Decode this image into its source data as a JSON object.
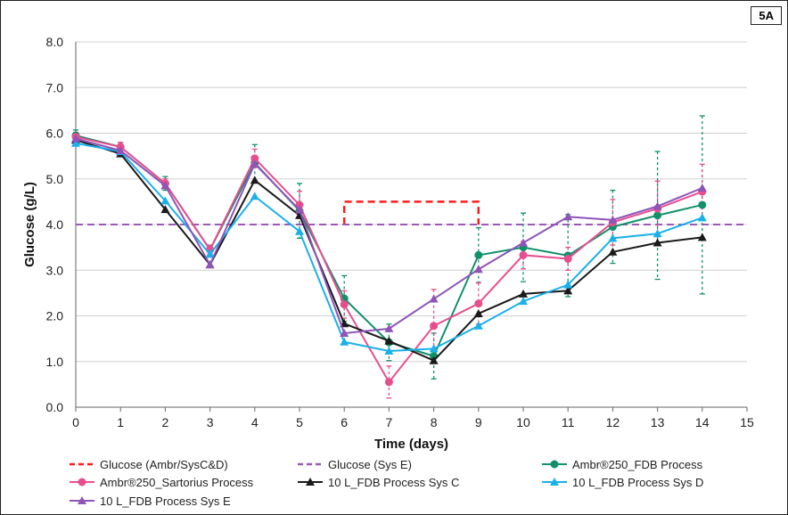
{
  "panel_label": "5A",
  "chart_data": {
    "type": "line",
    "xlabel": "Time (days)",
    "ylabel": "Glucose (g/L)",
    "xlim": [
      0,
      15
    ],
    "ylim": [
      0,
      8
    ],
    "x_ticks": [
      0,
      1,
      2,
      3,
      4,
      5,
      6,
      7,
      8,
      9,
      10,
      11,
      12,
      13,
      14,
      15
    ],
    "y_ticks": [
      "0.0",
      "1.0",
      "2.0",
      "3.0",
      "4.0",
      "5.0",
      "6.0",
      "7.0",
      "8.0"
    ],
    "grid": "horizontal",
    "legend_position": "bottom",
    "reference_lines": [
      {
        "name": "Glucose (Ambr/SysC&D)",
        "color": "#ff1a1a",
        "style": "dashed",
        "points": [
          [
            6,
            4.0
          ],
          [
            6,
            4.5
          ],
          [
            9,
            4.5
          ],
          [
            9,
            4.0
          ]
        ]
      },
      {
        "name": "Glucose (Sys E)",
        "color": "#9b59b6",
        "style": "dashed",
        "points": [
          [
            0,
            4.0
          ],
          [
            15,
            4.0
          ]
        ]
      }
    ],
    "series": [
      {
        "name": "Ambr®250_FDB Process",
        "color": "#12906a",
        "marker": "circle",
        "x": [
          0,
          1,
          2,
          3,
          4,
          5,
          6,
          7,
          8,
          9,
          10,
          11,
          12,
          13,
          14
        ],
        "y": [
          5.95,
          5.7,
          4.9,
          3.45,
          5.35,
          4.3,
          2.38,
          1.42,
          1.12,
          3.33,
          3.5,
          3.32,
          3.95,
          4.2,
          4.43
        ],
        "err": [
          0.12,
          0.1,
          0.15,
          0.1,
          0.4,
          0.6,
          0.5,
          0.4,
          0.5,
          0.6,
          0.75,
          0.9,
          0.8,
          1.4,
          1.95
        ]
      },
      {
        "name": "Ambr®250_Sartorius Process",
        "color": "#e64f8e",
        "marker": "circle",
        "x": [
          0,
          1,
          2,
          3,
          4,
          5,
          6,
          7,
          8,
          9,
          10,
          11,
          12,
          13,
          14
        ],
        "y": [
          5.92,
          5.7,
          4.9,
          3.45,
          5.45,
          4.43,
          2.25,
          0.55,
          1.78,
          2.27,
          3.33,
          3.25,
          4.05,
          4.35,
          4.72
        ],
        "err": [
          0.1,
          0.1,
          0.1,
          0.1,
          0.2,
          0.3,
          0.3,
          0.35,
          0.8,
          0.45,
          0.3,
          0.25,
          0.5,
          0.6,
          0.6
        ]
      },
      {
        "name": "10 L_FDB Process Sys C",
        "color": "#1a1a1a",
        "marker": "triangle",
        "x": [
          0,
          1,
          2,
          3,
          4,
          5,
          6,
          7,
          8,
          9,
          10,
          11,
          12,
          13,
          14
        ],
        "y": [
          5.85,
          5.55,
          4.33,
          3.12,
          4.97,
          4.2,
          1.83,
          1.45,
          1.02,
          2.05,
          2.48,
          2.55,
          3.4,
          3.6,
          3.72
        ],
        "err": [
          0,
          0,
          0,
          0,
          0,
          0,
          0,
          0,
          0,
          0,
          0,
          0,
          0,
          0,
          0
        ]
      },
      {
        "name": "10 L_FDB Process Sys D",
        "color": "#1ab0ea",
        "marker": "triangle",
        "x": [
          0,
          1,
          2,
          3,
          4,
          5,
          6,
          7,
          8,
          9,
          10,
          11,
          12,
          13,
          14
        ],
        "y": [
          5.78,
          5.6,
          4.52,
          3.35,
          4.62,
          3.85,
          1.43,
          1.23,
          1.28,
          1.78,
          2.32,
          2.68,
          3.7,
          3.8,
          4.15
        ],
        "err": [
          0,
          0,
          0,
          0,
          0,
          0,
          0,
          0,
          0,
          0,
          0,
          0,
          0,
          0,
          0
        ]
      },
      {
        "name": "10 L_FDB Process Sys E",
        "color": "#8e54b8",
        "marker": "triangle",
        "x": [
          0,
          1,
          2,
          3,
          4,
          5,
          6,
          7,
          8,
          9,
          10,
          11,
          12,
          13,
          14
        ],
        "y": [
          5.88,
          5.62,
          4.85,
          3.12,
          5.33,
          4.32,
          1.62,
          1.72,
          2.37,
          3.02,
          3.6,
          4.17,
          4.1,
          4.4,
          4.8
        ],
        "err": [
          0,
          0,
          0,
          0,
          0,
          0,
          0,
          0,
          0,
          0,
          0,
          0,
          0,
          0,
          0
        ]
      }
    ],
    "legend_entries": [
      "Glucose (Ambr/SysC&D)",
      "Glucose (Sys E)",
      "Ambr®250_FDB Process",
      "Ambr®250_Sartorius Process",
      "10 L_FDB Process Sys C",
      "10 L_FDB Process Sys D",
      "10 L_FDB Process Sys E"
    ]
  }
}
